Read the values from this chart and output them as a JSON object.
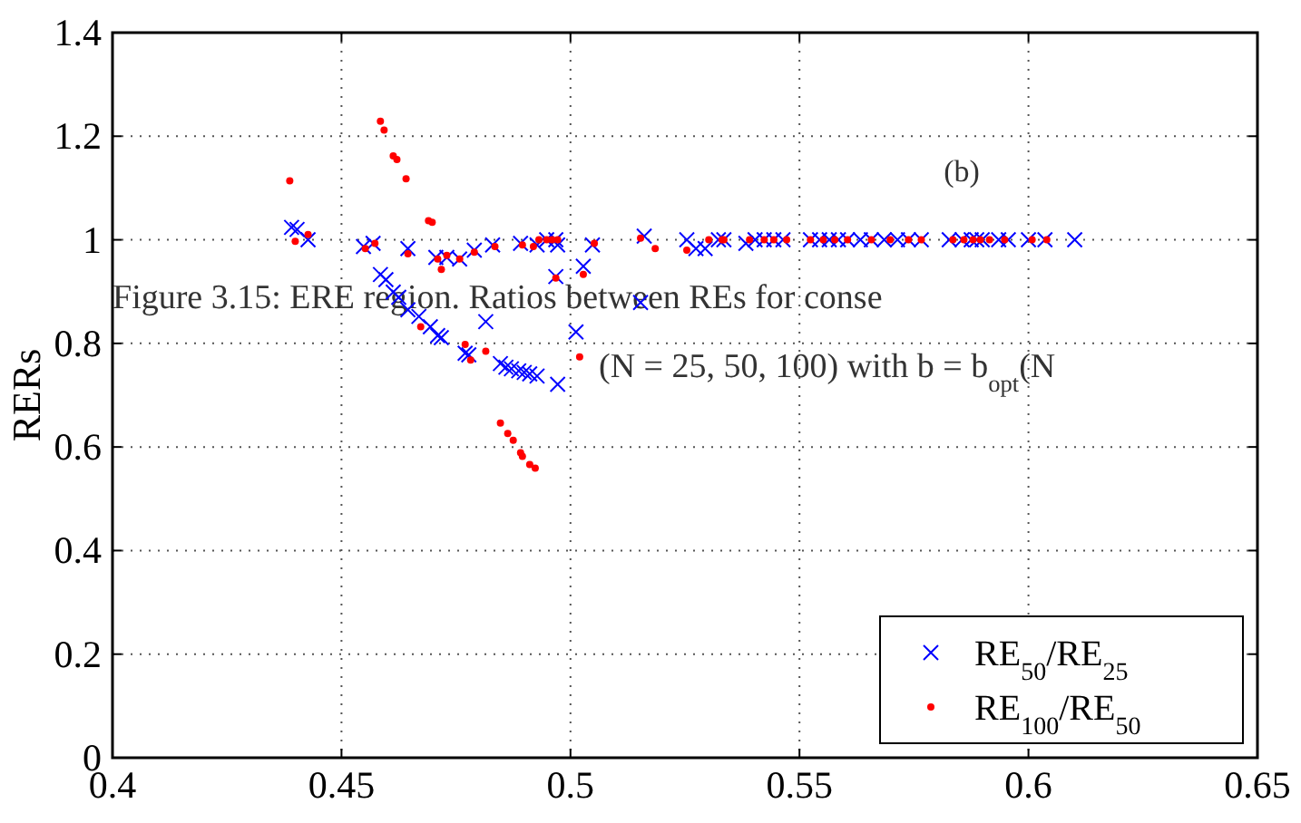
{
  "chart_data": {
    "type": "scatter",
    "ylabel": "RERs",
    "xlim": [
      0.4,
      0.65
    ],
    "ylim": [
      0,
      1.4
    ],
    "xticks": [
      0.4,
      0.45,
      0.5,
      0.55,
      0.6,
      0.65
    ],
    "yticks": [
      0,
      0.2,
      0.4,
      0.6,
      0.8,
      1,
      1.2,
      1.4
    ],
    "grid": true,
    "legend": "bottom right",
    "annotations": [
      "(b)",
      "Figure 3.15: ERE region. Ratios between REs for conse",
      "(N = 25, 50, 100) with b = b$_{opt}$(N"
    ],
    "series": [
      {
        "name": "RE$_{50}$/RE$_{25}$",
        "color": "#0000ff",
        "marker": "cross",
        "x": [
          0.4391,
          0.4403,
          0.4427,
          0.4548,
          0.4569,
          0.4645,
          0.4706,
          0.473,
          0.4758,
          0.479,
          0.483,
          0.4891,
          0.4927,
          0.4948,
          0.4968,
          0.4972,
          0.4968,
          0.5028,
          0.5048,
          0.5012,
          0.5153,
          0.5161,
          0.4585,
          0.4597,
          0.4613,
          0.4625,
          0.4645,
          0.4669,
          0.4694,
          0.471,
          0.4718,
          0.477,
          0.4778,
          0.4815,
          0.4847,
          0.4859,
          0.4871,
          0.4887,
          0.4899,
          0.4911,
          0.4927,
          0.4972,
          0.5254,
          0.5274,
          0.5294,
          0.5323,
          0.5335,
          0.5383,
          0.5403,
          0.5423,
          0.5444,
          0.5464,
          0.5524,
          0.5544,
          0.5565,
          0.5585,
          0.5605,
          0.5633,
          0.5657,
          0.5685,
          0.5714,
          0.5738,
          0.5766,
          0.5827,
          0.5855,
          0.5875,
          0.5887,
          0.5899,
          0.5935,
          0.5956,
          0.6,
          0.6036,
          0.6101
        ],
        "values": [
          1.024,
          1.02,
          1.0,
          0.987,
          0.993,
          0.983,
          0.966,
          0.966,
          0.963,
          0.98,
          0.99,
          0.993,
          0.99,
          1.0,
          1.0,
          0.99,
          0.929,
          0.949,
          0.99,
          0.822,
          0.879,
          1.007,
          0.933,
          0.923,
          0.899,
          0.889,
          0.865,
          0.852,
          0.832,
          0.815,
          0.811,
          0.781,
          0.778,
          0.842,
          0.761,
          0.754,
          0.751,
          0.747,
          0.744,
          0.741,
          0.737,
          0.721,
          1.0,
          0.983,
          0.983,
          1.0,
          1.0,
          0.993,
          1.0,
          1.0,
          1.0,
          1.0,
          1.0,
          1.0,
          1.0,
          1.0,
          1.0,
          1.0,
          1.0,
          1.0,
          1.0,
          1.0,
          1.0,
          1.0,
          1.0,
          1.0,
          1.0,
          1.0,
          1.0,
          1.0,
          1.0,
          1.0,
          1.0
        ]
      },
      {
        "name": "RE$_{100}$/RE$_{50}$",
        "color": "#ff0000",
        "marker": "circle",
        "x": [
          0.4387,
          0.4585,
          0.4593,
          0.4613,
          0.4621,
          0.4641,
          0.469,
          0.4698,
          0.4399,
          0.4427,
          0.4552,
          0.4573,
          0.4645,
          0.471,
          0.473,
          0.4718,
          0.4758,
          0.479,
          0.4835,
          0.4895,
          0.4919,
          0.4931,
          0.4948,
          0.496,
          0.4972,
          0.4968,
          0.5028,
          0.5052,
          0.4673,
          0.477,
          0.4782,
          0.4815,
          0.502,
          0.5153,
          0.5185,
          0.4847,
          0.4863,
          0.4875,
          0.4891,
          0.4895,
          0.4911,
          0.4923,
          0.5254,
          0.5302,
          0.5331,
          0.5335,
          0.5391,
          0.5423,
          0.5444,
          0.5472,
          0.5524,
          0.5552,
          0.5577,
          0.5605,
          0.5657,
          0.5698,
          0.5738,
          0.5766,
          0.5835,
          0.5859,
          0.5879,
          0.5895,
          0.5915,
          0.5948,
          0.6008,
          0.604
        ],
        "values": [
          1.114,
          1.229,
          1.212,
          1.162,
          1.155,
          1.118,
          1.037,
          1.034,
          0.997,
          1.01,
          0.983,
          0.993,
          0.973,
          0.963,
          0.97,
          0.943,
          0.963,
          0.976,
          0.987,
          0.99,
          0.987,
          1.0,
          1.0,
          1.0,
          1.0,
          0.926,
          0.933,
          0.993,
          0.832,
          0.798,
          0.768,
          0.785,
          0.774,
          1.003,
          0.983,
          0.646,
          0.626,
          0.613,
          0.589,
          0.582,
          0.566,
          0.559,
          0.98,
          1.0,
          1.0,
          1.0,
          1.0,
          1.0,
          1.0,
          1.0,
          1.0,
          1.0,
          1.0,
          1.0,
          1.0,
          1.0,
          1.0,
          1.0,
          1.0,
          1.0,
          1.0,
          1.0,
          1.0,
          1.0,
          1.0,
          1.0
        ]
      }
    ]
  }
}
